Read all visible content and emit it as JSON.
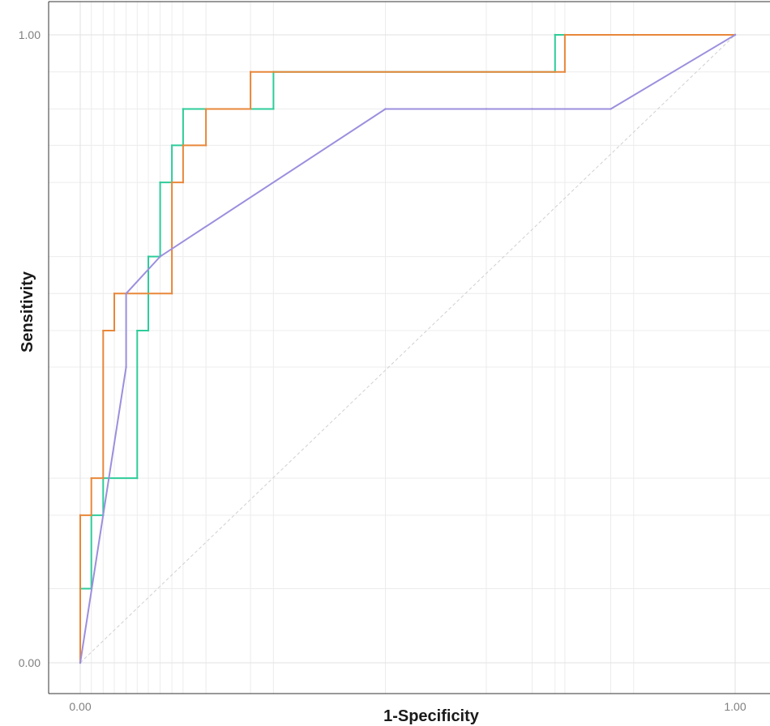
{
  "chart_data": {
    "type": "line",
    "title": "",
    "xlabel": "1-Specificity",
    "ylabel": "Sensitivity",
    "xlim": [
      0,
      1
    ],
    "ylim": [
      0,
      1
    ],
    "x_ticks": [
      0.0,
      1.0
    ],
    "x_tick_labels": [
      "0.00",
      "1.00"
    ],
    "y_ticks": [
      0.0,
      1.0
    ],
    "y_tick_labels": [
      "0.00",
      "1.00"
    ],
    "grid": true,
    "legend": "none",
    "reference_line": {
      "x": [
        0,
        1
      ],
      "y": [
        0,
        1
      ],
      "style": "dashed",
      "color": "#d0d0d0"
    },
    "series": [
      {
        "name": "green",
        "color": "#2ecc9a",
        "step": true,
        "x": [
          0.0,
          0.0,
          0.017,
          0.017,
          0.035,
          0.035,
          0.087,
          0.087,
          0.104,
          0.104,
          0.122,
          0.122,
          0.14,
          0.14,
          0.157,
          0.157,
          0.295,
          0.295,
          0.725,
          0.725,
          0.845,
          0.845,
          1.0
        ],
        "y": [
          0.0,
          0.118,
          0.118,
          0.235,
          0.235,
          0.294,
          0.294,
          0.529,
          0.529,
          0.647,
          0.647,
          0.765,
          0.765,
          0.824,
          0.824,
          0.882,
          0.882,
          0.941,
          0.941,
          1.0,
          1.0,
          1.0,
          1.0
        ]
      },
      {
        "name": "orange",
        "color": "#e8873a",
        "step": true,
        "x": [
          0.0,
          0.0,
          0.017,
          0.017,
          0.035,
          0.035,
          0.052,
          0.052,
          0.07,
          0.07,
          0.14,
          0.14,
          0.157,
          0.157,
          0.192,
          0.192,
          0.26,
          0.26,
          0.74,
          0.74,
          1.0
        ],
        "y": [
          0.0,
          0.235,
          0.235,
          0.294,
          0.294,
          0.529,
          0.529,
          0.588,
          0.588,
          0.588,
          0.588,
          0.765,
          0.765,
          0.824,
          0.824,
          0.882,
          0.882,
          0.941,
          0.941,
          1.0,
          1.0
        ]
      },
      {
        "name": "purple",
        "color": "#9b8fde",
        "step": false,
        "x": [
          0.0,
          0.07,
          0.07,
          0.122,
          0.466,
          0.62,
          0.69,
          0.81,
          1.0
        ],
        "y": [
          0.0,
          0.471,
          0.588,
          0.647,
          0.882,
          0.882,
          0.882,
          0.882,
          1.0
        ]
      }
    ]
  }
}
